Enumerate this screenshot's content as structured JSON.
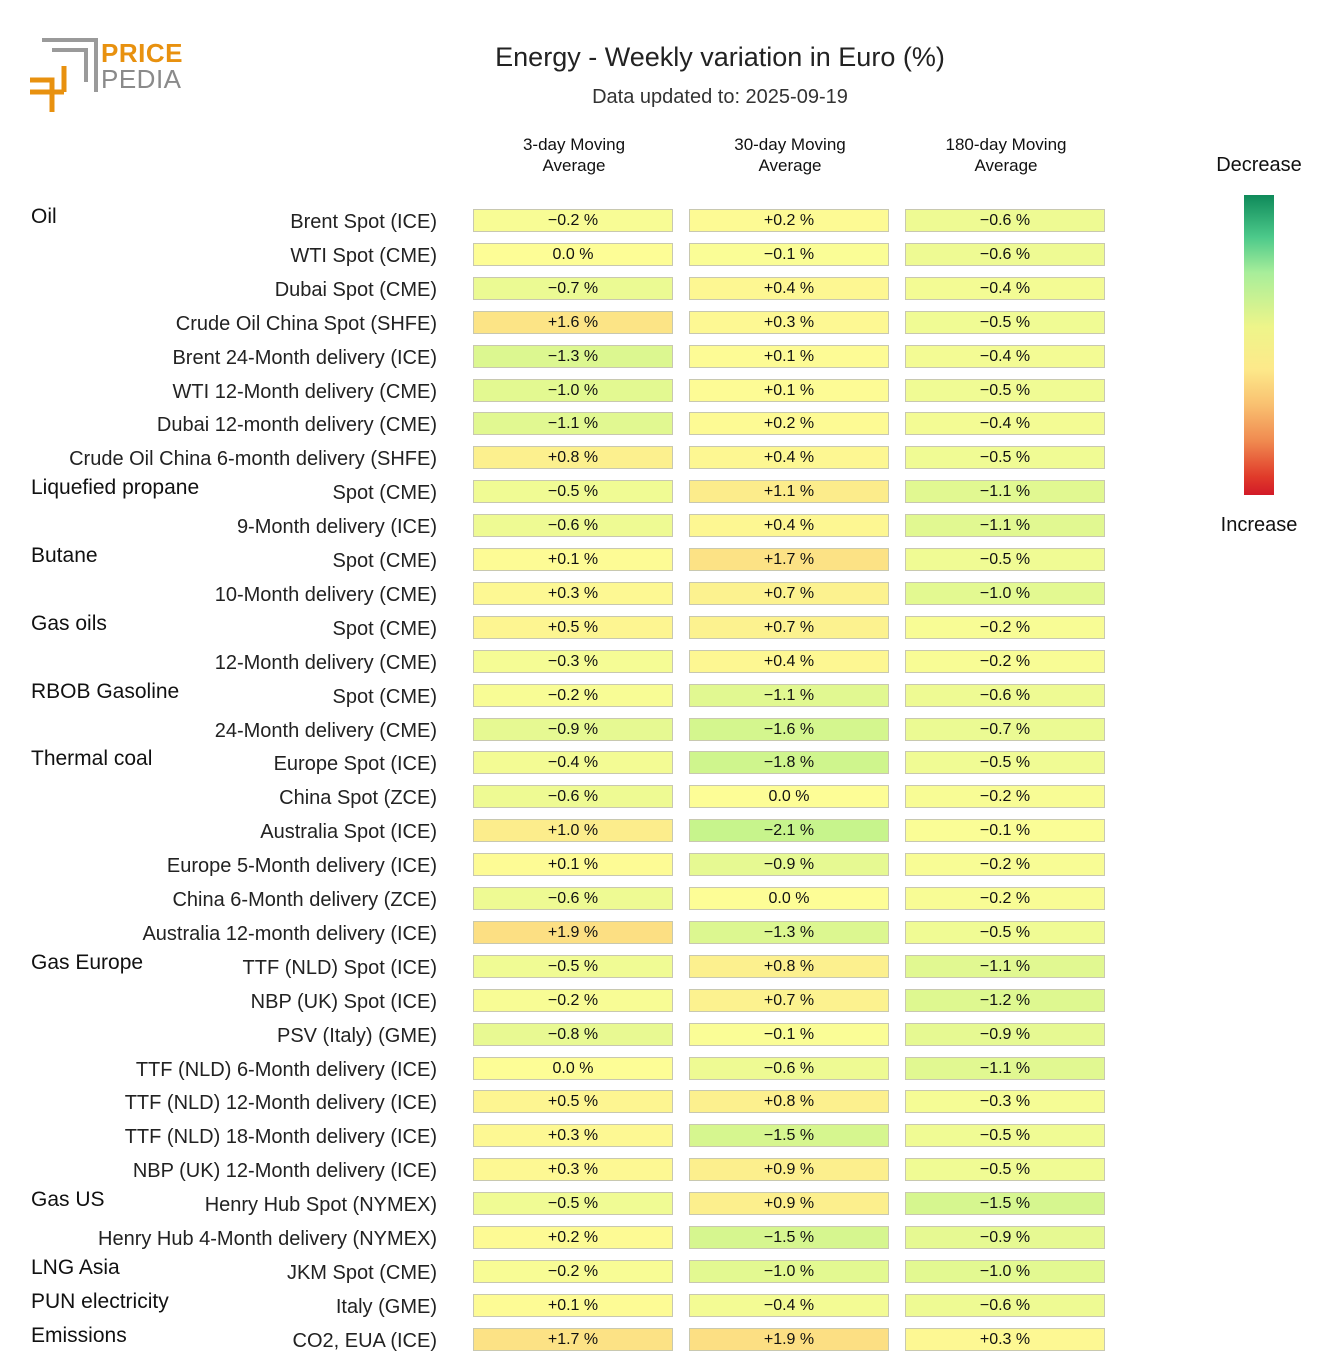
{
  "logo": {
    "line1": "PRICE",
    "line2": "PEDIA"
  },
  "title": "Energy - Weekly variation in Euro (%)",
  "subtitle": "Data updated to: 2025-09-19",
  "legend": {
    "top": "Decrease",
    "bottom": "Increase"
  },
  "colors": {
    "increase": "#d21a28",
    "decrease": "#0f8a5a",
    "neutral": "#fdfd96",
    "brand": "#e8910f"
  },
  "chart_data": {
    "type": "table",
    "title": "Energy - Weekly variation in Euro (%)",
    "columns": [
      "3-day Moving Average",
      "30-day Moving Average",
      "180-day Moving Average"
    ],
    "column_lines": [
      [
        "3-day Moving",
        "Average"
      ],
      [
        "30-day Moving",
        "Average"
      ],
      [
        "180-day Moving",
        "Average"
      ]
    ],
    "unit": "%",
    "rows": [
      {
        "group": "Oil",
        "label": "Brent Spot (ICE)",
        "values": [
          -0.2,
          0.2,
          -0.6
        ]
      },
      {
        "group": "",
        "label": "WTI Spot (CME)",
        "values": [
          0.0,
          -0.1,
          -0.6
        ]
      },
      {
        "group": "",
        "label": "Dubai Spot (CME)",
        "values": [
          -0.7,
          0.4,
          -0.4
        ]
      },
      {
        "group": "",
        "label": "Crude Oil China Spot (SHFE)",
        "values": [
          1.6,
          0.3,
          -0.5
        ]
      },
      {
        "group": "",
        "label": "Brent 24-Month delivery (ICE)",
        "values": [
          -1.3,
          0.1,
          -0.4
        ]
      },
      {
        "group": "",
        "label": "WTI 12-Month delivery (CME)",
        "values": [
          -1.0,
          0.1,
          -0.5
        ]
      },
      {
        "group": "",
        "label": "Dubai 12-month delivery (CME)",
        "values": [
          -1.1,
          0.2,
          -0.4
        ]
      },
      {
        "group": "",
        "label": "Crude Oil China 6-month delivery (SHFE)",
        "values": [
          0.8,
          0.4,
          -0.5
        ]
      },
      {
        "group": "Liquefied propane",
        "label": "Spot (CME)",
        "values": [
          -0.5,
          1.1,
          -1.1
        ]
      },
      {
        "group": "",
        "label": "9-Month delivery (ICE)",
        "values": [
          -0.6,
          0.4,
          -1.1
        ]
      },
      {
        "group": "Butane",
        "label": "Spot (CME)",
        "values": [
          0.1,
          1.7,
          -0.5
        ]
      },
      {
        "group": "",
        "label": "10-Month delivery (CME)",
        "values": [
          0.3,
          0.7,
          -1.0
        ]
      },
      {
        "group": "Gas oils",
        "label": "Spot (CME)",
        "values": [
          0.5,
          0.7,
          -0.2
        ]
      },
      {
        "group": "",
        "label": "12-Month delivery (CME)",
        "values": [
          -0.3,
          0.4,
          -0.2
        ]
      },
      {
        "group": "RBOB Gasoline",
        "label": "Spot (CME)",
        "values": [
          -0.2,
          -1.1,
          -0.6
        ]
      },
      {
        "group": "",
        "label": "24-Month delivery (CME)",
        "values": [
          -0.9,
          -1.6,
          -0.7
        ]
      },
      {
        "group": "Thermal coal",
        "label": "Europe Spot (ICE)",
        "values": [
          -0.4,
          -1.8,
          -0.5
        ]
      },
      {
        "group": "",
        "label": "China Spot (ZCE)",
        "values": [
          -0.6,
          0.0,
          -0.2
        ]
      },
      {
        "group": "",
        "label": "Australia Spot (ICE)",
        "values": [
          1.0,
          -2.1,
          -0.1
        ]
      },
      {
        "group": "",
        "label": "Europe 5-Month delivery (ICE)",
        "values": [
          0.1,
          -0.9,
          -0.2
        ]
      },
      {
        "group": "",
        "label": "China 6-Month delivery (ZCE)",
        "values": [
          -0.6,
          0.0,
          -0.2
        ]
      },
      {
        "group": "",
        "label": "Australia 12-month delivery (ICE)",
        "values": [
          1.9,
          -1.3,
          -0.5
        ]
      },
      {
        "group": "Gas Europe",
        "label": "TTF (NLD) Spot (ICE)",
        "values": [
          -0.5,
          0.8,
          -1.1
        ]
      },
      {
        "group": "",
        "label": "NBP (UK) Spot (ICE)",
        "values": [
          -0.2,
          0.7,
          -1.2
        ]
      },
      {
        "group": "",
        "label": "PSV (Italy) (GME)",
        "values": [
          -0.8,
          -0.1,
          -0.9
        ]
      },
      {
        "group": "",
        "label": "TTF (NLD) 6-Month delivery (ICE)",
        "values": [
          0.0,
          -0.6,
          -1.1
        ]
      },
      {
        "group": "",
        "label": "TTF (NLD) 12-Month delivery (ICE)",
        "values": [
          0.5,
          0.8,
          -0.3
        ]
      },
      {
        "group": "",
        "label": "TTF (NLD) 18-Month delivery (ICE)",
        "values": [
          0.3,
          -1.5,
          -0.5
        ]
      },
      {
        "group": "",
        "label": "NBP (UK) 12-Month delivery (ICE)",
        "values": [
          0.3,
          0.9,
          -0.5
        ]
      },
      {
        "group": "Gas US",
        "label": "Henry Hub Spot (NYMEX)",
        "values": [
          -0.5,
          0.9,
          -1.5
        ]
      },
      {
        "group": "",
        "label": "Henry Hub 4-Month delivery (NYMEX)",
        "values": [
          0.2,
          -1.5,
          -0.9
        ]
      },
      {
        "group": "LNG Asia",
        "label": "JKM Spot (CME)",
        "values": [
          -0.2,
          -1.0,
          -1.0
        ]
      },
      {
        "group": "PUN electricity",
        "label": "Italy (GME)",
        "values": [
          0.1,
          -0.4,
          -0.6
        ]
      },
      {
        "group": "Emissions",
        "label": "CO2, EUA (ICE)",
        "values": [
          1.7,
          1.9,
          0.3
        ]
      }
    ]
  }
}
